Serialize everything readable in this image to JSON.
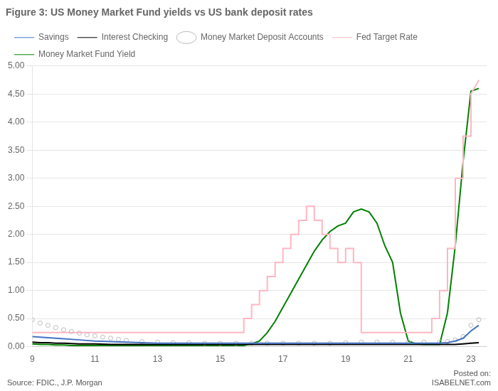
{
  "chart_data": {
    "type": "line",
    "title": "Figure 3: US Money Market Fund yields vs US bank deposit rates",
    "source": "Source: FDIC., J.P. Morgan",
    "annotations": [
      "Posted on:",
      "ISABELNET.com"
    ],
    "xlim": [
      9,
      23.5
    ],
    "ylim": [
      0,
      5.0
    ],
    "xticks": [
      9,
      11,
      13,
      15,
      17,
      19,
      21,
      23
    ],
    "yticks": [
      {
        "value": 0.0,
        "label": "0.00"
      },
      {
        "value": 0.5,
        "label": "0.50"
      },
      {
        "value": 1.0,
        "label": "1.00"
      },
      {
        "value": 1.5,
        "label": "1.50"
      },
      {
        "value": 2.0,
        "label": "2.00"
      },
      {
        "value": 2.5,
        "label": "2.50"
      },
      {
        "value": 3.0,
        "label": "3.00"
      },
      {
        "value": 3.5,
        "label": "3.50"
      },
      {
        "value": 4.0,
        "label": "4.00"
      },
      {
        "value": 4.5,
        "label": "4.50"
      },
      {
        "value": 5.0,
        "label": "5.00"
      }
    ],
    "grid": "y",
    "legend": "upper left",
    "series": [
      {
        "name": "Savings",
        "color": "#4472C4",
        "line_style": "solid",
        "x": [
          9.0,
          9.25,
          9.5,
          9.75,
          10.0,
          10.5,
          11.0,
          11.5,
          12.0,
          12.5,
          13.0,
          13.5,
          14.0,
          14.5,
          15.0,
          15.5,
          16.0,
          16.5,
          17.0,
          17.5,
          18.0,
          18.5,
          19.0,
          19.5,
          20.0,
          20.5,
          21.0,
          21.5,
          22.0,
          22.25,
          22.5,
          22.75,
          23.0,
          23.25
        ],
        "values": [
          0.18,
          0.17,
          0.16,
          0.15,
          0.14,
          0.12,
          0.1,
          0.09,
          0.08,
          0.07,
          0.06,
          0.06,
          0.06,
          0.06,
          0.06,
          0.06,
          0.06,
          0.06,
          0.06,
          0.06,
          0.06,
          0.06,
          0.06,
          0.06,
          0.06,
          0.06,
          0.06,
          0.06,
          0.06,
          0.07,
          0.1,
          0.15,
          0.28,
          0.38
        ]
      },
      {
        "name": "Interest Checking",
        "color": "#000000",
        "line_style": "solid",
        "x": [
          9.0,
          9.25,
          9.5,
          9.75,
          10.0,
          10.5,
          11.0,
          11.5,
          12.0,
          12.5,
          13.0,
          13.5,
          14.0,
          14.5,
          15.0,
          15.5,
          16.0,
          16.5,
          17.0,
          17.5,
          18.0,
          18.5,
          19.0,
          19.5,
          20.0,
          20.5,
          21.0,
          21.5,
          22.0,
          22.25,
          22.5,
          22.75,
          23.0,
          23.25
        ],
        "values": [
          0.08,
          0.07,
          0.07,
          0.06,
          0.06,
          0.05,
          0.05,
          0.04,
          0.04,
          0.04,
          0.04,
          0.04,
          0.04,
          0.04,
          0.04,
          0.04,
          0.04,
          0.04,
          0.04,
          0.04,
          0.04,
          0.04,
          0.04,
          0.04,
          0.04,
          0.04,
          0.04,
          0.04,
          0.04,
          0.04,
          0.04,
          0.05,
          0.06,
          0.07
        ]
      },
      {
        "name": "Money Market Deposit Accounts",
        "color": "#BBBBBB",
        "line_style": "none",
        "marker": "circle",
        "x": [
          9.0,
          9.25,
          9.5,
          9.75,
          10.0,
          10.25,
          10.5,
          10.75,
          11.0,
          11.25,
          11.5,
          11.75,
          12.0,
          12.5,
          13.0,
          13.5,
          14.0,
          14.5,
          15.0,
          15.5,
          16.0,
          16.5,
          17.0,
          17.5,
          18.0,
          18.5,
          19.0,
          19.5,
          20.0,
          20.5,
          21.0,
          21.5,
          22.0,
          22.25,
          22.5,
          22.75,
          23.0,
          23.25
        ],
        "values": [
          0.48,
          0.42,
          0.38,
          0.34,
          0.3,
          0.27,
          0.24,
          0.21,
          0.19,
          0.17,
          0.15,
          0.13,
          0.11,
          0.09,
          0.08,
          0.07,
          0.07,
          0.06,
          0.06,
          0.06,
          0.06,
          0.06,
          0.06,
          0.06,
          0.06,
          0.06,
          0.07,
          0.08,
          0.08,
          0.08,
          0.08,
          0.08,
          0.08,
          0.09,
          0.12,
          0.18,
          0.38,
          0.48
        ]
      },
      {
        "name": "Fed Target Rate",
        "color": "#FFB6C1",
        "line_style": "solid",
        "x": [
          9.0,
          15.75,
          15.75,
          16.0,
          16.0,
          16.25,
          16.25,
          16.5,
          16.5,
          16.75,
          16.75,
          17.0,
          17.0,
          17.25,
          17.25,
          17.5,
          17.5,
          17.75,
          17.75,
          18.0,
          18.0,
          18.25,
          18.25,
          18.5,
          18.5,
          18.75,
          18.75,
          19.0,
          19.0,
          19.25,
          19.25,
          19.5,
          19.5,
          19.75,
          19.75,
          20.0,
          20.0,
          21.75,
          21.75,
          22.0,
          22.0,
          22.25,
          22.25,
          22.5,
          22.5,
          22.75,
          22.75,
          23.0,
          23.0,
          23.25
        ],
        "values": [
          0.25,
          0.25,
          0.5,
          0.5,
          0.75,
          0.75,
          1.0,
          1.0,
          1.25,
          1.25,
          1.5,
          1.5,
          1.75,
          1.75,
          2.0,
          2.0,
          2.25,
          2.25,
          2.5,
          2.5,
          2.25,
          2.25,
          2.0,
          2.0,
          1.75,
          1.75,
          1.5,
          1.5,
          1.75,
          1.75,
          1.5,
          1.5,
          0.25,
          0.25,
          0.25,
          0.25,
          0.25,
          0.25,
          0.5,
          0.5,
          1.0,
          1.0,
          1.75,
          1.75,
          3.0,
          3.0,
          3.75,
          3.75,
          4.5,
          4.75
        ]
      },
      {
        "name": "Money Market Fund Yield",
        "color": "#008000",
        "line_style": "solid",
        "x": [
          9.0,
          9.25,
          9.5,
          9.75,
          10.0,
          10.25,
          10.5,
          10.75,
          11.0,
          11.25,
          11.5,
          11.75,
          12.0,
          12.25,
          12.5,
          12.75,
          13.0,
          13.25,
          13.5,
          13.75,
          14.0,
          14.25,
          14.5,
          14.75,
          15.0,
          15.25,
          15.5,
          15.75,
          16.0,
          16.25,
          16.5,
          16.75,
          17.0,
          17.25,
          17.5,
          17.75,
          18.0,
          18.25,
          18.5,
          18.75,
          19.0,
          19.25,
          19.5,
          19.75,
          20.0,
          20.25,
          20.5,
          20.75,
          21.0,
          21.25,
          21.5,
          21.75,
          22.0,
          22.25,
          22.5,
          22.75,
          23.0,
          23.25
        ],
        "values": [
          0.05,
          0.04,
          0.04,
          0.03,
          0.03,
          0.02,
          0.02,
          0.02,
          0.02,
          0.02,
          0.02,
          0.02,
          0.02,
          0.02,
          0.02,
          0.02,
          0.02,
          0.02,
          0.02,
          0.02,
          0.02,
          0.02,
          0.02,
          0.02,
          0.02,
          0.02,
          0.02,
          0.02,
          0.05,
          0.1,
          0.25,
          0.45,
          0.7,
          0.95,
          1.2,
          1.45,
          1.7,
          1.9,
          2.05,
          2.15,
          2.2,
          2.4,
          2.45,
          2.4,
          2.2,
          1.8,
          1.5,
          0.6,
          0.1,
          0.05,
          0.04,
          0.04,
          0.04,
          0.6,
          1.8,
          3.3,
          4.55,
          4.6
        ]
      }
    ]
  }
}
